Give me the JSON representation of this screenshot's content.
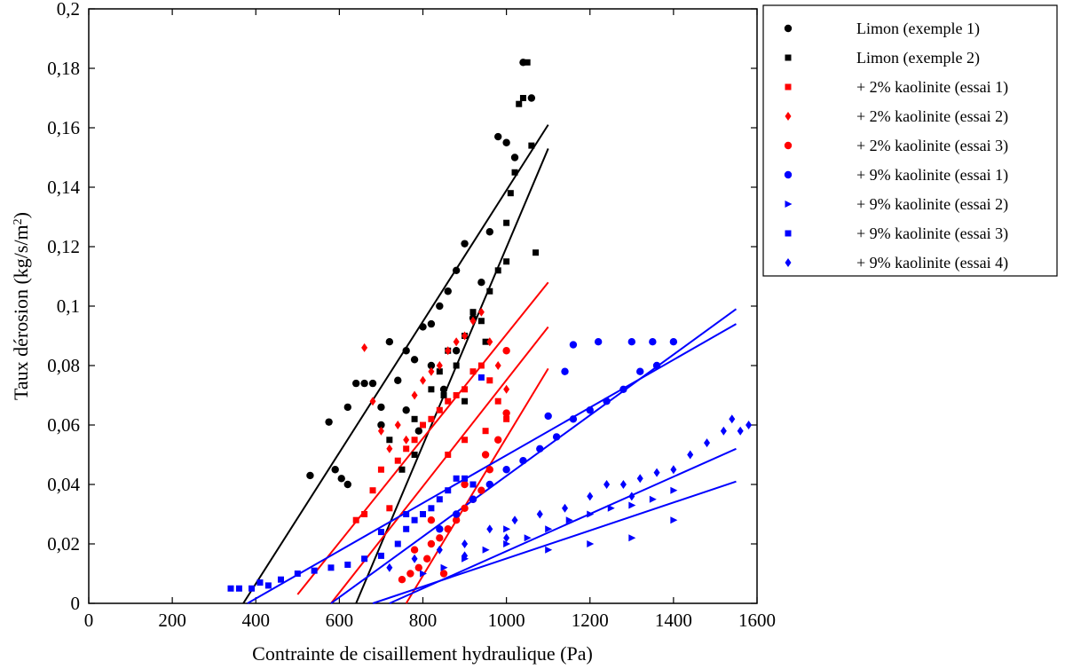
{
  "chart_data": {
    "type": "scatter",
    "title": "",
    "xlabel": "Contrainte de cisaillement hydraulique (Pa)",
    "ylabel": "Taux dérosion (kg/s/m²)",
    "ylabel_main": "Taux dérosion (kg/s/m",
    "ylabel_sup": "2",
    "ylabel_close": ")",
    "xlim": [
      0,
      1600
    ],
    "ylim": [
      0,
      0.2
    ],
    "x_ticks": [
      0,
      200,
      400,
      600,
      800,
      1000,
      1200,
      1400,
      1600
    ],
    "x_tick_labels": [
      "0",
      "200",
      "400",
      "600",
      "800",
      "1000",
      "1200",
      "1400",
      "1600"
    ],
    "y_ticks": [
      0,
      0.02,
      0.04,
      0.06,
      0.08,
      0.1,
      0.12,
      0.14,
      0.16,
      0.18,
      0.2
    ],
    "y_tick_labels": [
      "0",
      "0,02",
      "0,04",
      "0,06",
      "0,08",
      "0,1",
      "0,12",
      "0,14",
      "0,16",
      "0,18",
      "0,2"
    ],
    "grid": false,
    "legend_position": "outside-right-top",
    "series": [
      {
        "name": "Limon (exemple 1)",
        "marker": "circle",
        "color": "#000000",
        "points": [
          [
            530,
            0.043
          ],
          [
            575,
            0.061
          ],
          [
            590,
            0.045
          ],
          [
            605,
            0.042
          ],
          [
            620,
            0.066
          ],
          [
            640,
            0.074
          ],
          [
            660,
            0.074
          ],
          [
            680,
            0.074
          ],
          [
            700,
            0.066
          ],
          [
            720,
            0.088
          ],
          [
            740,
            0.075
          ],
          [
            760,
            0.085
          ],
          [
            780,
            0.082
          ],
          [
            800,
            0.093
          ],
          [
            820,
            0.094
          ],
          [
            840,
            0.1
          ],
          [
            860,
            0.105
          ],
          [
            880,
            0.112
          ],
          [
            900,
            0.121
          ],
          [
            920,
            0.096
          ],
          [
            940,
            0.108
          ],
          [
            960,
            0.125
          ],
          [
            980,
            0.157
          ],
          [
            1000,
            0.155
          ],
          [
            1020,
            0.15
          ],
          [
            1040,
            0.182
          ],
          [
            1060,
            0.17
          ],
          [
            760,
            0.065
          ],
          [
            790,
            0.058
          ],
          [
            850,
            0.072
          ],
          [
            620,
            0.04
          ],
          [
            700,
            0.06
          ],
          [
            820,
            0.08
          ],
          [
            880,
            0.085
          ]
        ],
        "fit": [
          [
            370,
            0
          ],
          [
            1100,
            0.161
          ]
        ]
      },
      {
        "name": "Limon (exemple 2)",
        "marker": "square",
        "color": "#000000",
        "points": [
          [
            720,
            0.055
          ],
          [
            750,
            0.045
          ],
          [
            780,
            0.062
          ],
          [
            800,
            0.06
          ],
          [
            820,
            0.072
          ],
          [
            840,
            0.078
          ],
          [
            860,
            0.085
          ],
          [
            880,
            0.08
          ],
          [
            900,
            0.09
          ],
          [
            920,
            0.098
          ],
          [
            940,
            0.095
          ],
          [
            960,
            0.105
          ],
          [
            980,
            0.112
          ],
          [
            1000,
            0.128
          ],
          [
            1010,
            0.138
          ],
          [
            1020,
            0.145
          ],
          [
            1030,
            0.168
          ],
          [
            1040,
            0.17
          ],
          [
            1050,
            0.182
          ],
          [
            1060,
            0.154
          ],
          [
            1070,
            0.118
          ],
          [
            900,
            0.068
          ],
          [
            950,
            0.088
          ],
          [
            1000,
            0.115
          ],
          [
            780,
            0.05
          ],
          [
            850,
            0.07
          ]
        ],
        "fit": [
          [
            640,
            0
          ],
          [
            1100,
            0.153
          ]
        ]
      },
      {
        "name": "+ 2% kaolinite (essai 1)",
        "marker": "square",
        "color": "#ff0000",
        "points": [
          [
            640,
            0.028
          ],
          [
            660,
            0.03
          ],
          [
            680,
            0.038
          ],
          [
            700,
            0.045
          ],
          [
            720,
            0.032
          ],
          [
            740,
            0.048
          ],
          [
            760,
            0.052
          ],
          [
            780,
            0.055
          ],
          [
            800,
            0.06
          ],
          [
            820,
            0.062
          ],
          [
            840,
            0.065
          ],
          [
            860,
            0.068
          ],
          [
            880,
            0.07
          ],
          [
            900,
            0.072
          ],
          [
            920,
            0.078
          ],
          [
            940,
            0.08
          ],
          [
            960,
            0.075
          ],
          [
            980,
            0.068
          ],
          [
            1000,
            0.062
          ],
          [
            860,
            0.05
          ],
          [
            900,
            0.055
          ],
          [
            950,
            0.058
          ]
        ],
        "fit": [
          [
            500,
            0.003
          ],
          [
            1100,
            0.108
          ]
        ]
      },
      {
        "name": "+ 2% kaolinite (essai 2)",
        "marker": "diamond",
        "color": "#ff0000",
        "points": [
          [
            660,
            0.086
          ],
          [
            680,
            0.068
          ],
          [
            700,
            0.058
          ],
          [
            720,
            0.052
          ],
          [
            740,
            0.06
          ],
          [
            760,
            0.055
          ],
          [
            780,
            0.07
          ],
          [
            800,
            0.075
          ],
          [
            820,
            0.078
          ],
          [
            840,
            0.08
          ],
          [
            860,
            0.085
          ],
          [
            880,
            0.088
          ],
          [
            900,
            0.09
          ],
          [
            920,
            0.095
          ],
          [
            940,
            0.098
          ],
          [
            960,
            0.088
          ],
          [
            980,
            0.08
          ],
          [
            1000,
            0.072
          ]
        ],
        "fit": [
          [
            580,
            0
          ],
          [
            1100,
            0.093
          ]
        ]
      },
      {
        "name": "+ 2% kaolinite (essai 3)",
        "marker": "circle",
        "color": "#ff0000",
        "points": [
          [
            750,
            0.008
          ],
          [
            770,
            0.01
          ],
          [
            790,
            0.012
          ],
          [
            810,
            0.015
          ],
          [
            820,
            0.02
          ],
          [
            840,
            0.022
          ],
          [
            860,
            0.025
          ],
          [
            880,
            0.028
          ],
          [
            900,
            0.032
          ],
          [
            920,
            0.035
          ],
          [
            940,
            0.038
          ],
          [
            960,
            0.045
          ],
          [
            980,
            0.055
          ],
          [
            1000,
            0.064
          ],
          [
            1000,
            0.085
          ],
          [
            780,
            0.018
          ],
          [
            820,
            0.028
          ],
          [
            850,
            0.01
          ],
          [
            900,
            0.04
          ],
          [
            950,
            0.05
          ]
        ],
        "fit": [
          [
            760,
            0
          ],
          [
            1100,
            0.079
          ]
        ]
      },
      {
        "name": "+ 9% kaolinite (essai 1)",
        "marker": "circle",
        "color": "#0000ff",
        "points": [
          [
            840,
            0.025
          ],
          [
            880,
            0.03
          ],
          [
            920,
            0.035
          ],
          [
            960,
            0.04
          ],
          [
            1000,
            0.045
          ],
          [
            1040,
            0.048
          ],
          [
            1080,
            0.052
          ],
          [
            1120,
            0.056
          ],
          [
            1160,
            0.062
          ],
          [
            1200,
            0.065
          ],
          [
            1240,
            0.068
          ],
          [
            1280,
            0.072
          ],
          [
            1320,
            0.078
          ],
          [
            1360,
            0.08
          ],
          [
            1400,
            0.088
          ],
          [
            1160,
            0.087
          ],
          [
            1220,
            0.088
          ],
          [
            1300,
            0.088
          ],
          [
            1350,
            0.088
          ],
          [
            1100,
            0.063
          ],
          [
            1140,
            0.078
          ]
        ],
        "fit": [
          [
            580,
            0
          ],
          [
            1550,
            0.099
          ]
        ]
      },
      {
        "name": "+ 9% kaolinite (essai 2)",
        "marker": "triangle-right",
        "color": "#0000ff",
        "points": [
          [
            800,
            0.01
          ],
          [
            850,
            0.012
          ],
          [
            900,
            0.015
          ],
          [
            950,
            0.018
          ],
          [
            1000,
            0.02
          ],
          [
            1050,
            0.022
          ],
          [
            1100,
            0.025
          ],
          [
            1150,
            0.028
          ],
          [
            1200,
            0.03
          ],
          [
            1250,
            0.032
          ],
          [
            1300,
            0.033
          ],
          [
            1350,
            0.035
          ],
          [
            1400,
            0.038
          ],
          [
            1000,
            0.025
          ],
          [
            1100,
            0.018
          ],
          [
            1200,
            0.02
          ],
          [
            1300,
            0.022
          ],
          [
            1400,
            0.028
          ]
        ],
        "fit": [
          [
            680,
            0
          ],
          [
            1550,
            0.041
          ]
        ]
      },
      {
        "name": "+ 9% kaolinite (essai 3)",
        "marker": "square",
        "color": "#0000ff",
        "points": [
          [
            340,
            0.005
          ],
          [
            360,
            0.005
          ],
          [
            390,
            0.005
          ],
          [
            410,
            0.007
          ],
          [
            430,
            0.006
          ],
          [
            460,
            0.008
          ],
          [
            500,
            0.01
          ],
          [
            540,
            0.011
          ],
          [
            580,
            0.012
          ],
          [
            620,
            0.013
          ],
          [
            660,
            0.015
          ],
          [
            700,
            0.016
          ],
          [
            740,
            0.02
          ],
          [
            760,
            0.025
          ],
          [
            780,
            0.028
          ],
          [
            800,
            0.03
          ],
          [
            820,
            0.032
          ],
          [
            840,
            0.035
          ],
          [
            860,
            0.038
          ],
          [
            880,
            0.042
          ],
          [
            900,
            0.042
          ],
          [
            920,
            0.04
          ],
          [
            940,
            0.076
          ],
          [
            700,
            0.024
          ],
          [
            760,
            0.03
          ]
        ],
        "fit": [
          [
            380,
            0
          ],
          [
            1550,
            0.094
          ]
        ]
      },
      {
        "name": "+ 9% kaolinite (essai 4)",
        "marker": "diamond",
        "color": "#0000ff",
        "points": [
          [
            720,
            0.012
          ],
          [
            780,
            0.015
          ],
          [
            840,
            0.018
          ],
          [
            900,
            0.02
          ],
          [
            960,
            0.025
          ],
          [
            1020,
            0.028
          ],
          [
            1080,
            0.03
          ],
          [
            1140,
            0.032
          ],
          [
            1200,
            0.036
          ],
          [
            1240,
            0.04
          ],
          [
            1280,
            0.04
          ],
          [
            1320,
            0.042
          ],
          [
            1360,
            0.044
          ],
          [
            1400,
            0.045
          ],
          [
            1440,
            0.05
          ],
          [
            1480,
            0.054
          ],
          [
            1520,
            0.058
          ],
          [
            1540,
            0.062
          ],
          [
            1580,
            0.06
          ],
          [
            1560,
            0.058
          ],
          [
            1300,
            0.036
          ],
          [
            1000,
            0.022
          ],
          [
            900,
            0.016
          ]
        ],
        "fit": [
          [
            720,
            0
          ],
          [
            1550,
            0.052
          ]
        ]
      }
    ]
  }
}
